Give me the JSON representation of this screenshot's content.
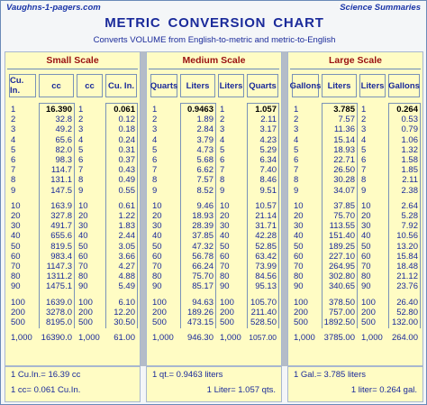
{
  "header": {
    "site": "Vaughns-1-pagers.com",
    "summaries": "Science Summaries",
    "title": "METRIC CONVERSION CHART",
    "subtitle": "Converts VOLUME from English-to-metric and metric-to-English"
  },
  "panels": [
    {
      "scale": "Small Scale",
      "headers": [
        "Cu. In.",
        "cc",
        "cc",
        "Cu. In."
      ],
      "left_rows": [
        [
          "1",
          "16.390"
        ],
        [
          "2",
          "32.8"
        ],
        [
          "3",
          "49.2"
        ],
        [
          "4",
          "65.6"
        ],
        [
          "5",
          "82.0"
        ],
        [
          "6",
          "98.3"
        ],
        [
          "7",
          "114.7"
        ],
        [
          "8",
          "131.1"
        ],
        [
          "9",
          "147.5"
        ],
        [
          "10",
          "163.9"
        ],
        [
          "20",
          "327.8"
        ],
        [
          "30",
          "491.7"
        ],
        [
          "40",
          "655.6"
        ],
        [
          "50",
          "819.5"
        ],
        [
          "60",
          "983.4"
        ],
        [
          "70",
          "1147.3"
        ],
        [
          "80",
          "1311.2"
        ],
        [
          "90",
          "1475.1"
        ],
        [
          "100",
          "1639.0"
        ],
        [
          "200",
          "3278.0"
        ],
        [
          "500",
          "8195.0"
        ],
        [
          "1,000",
          "16390.0"
        ]
      ],
      "right_rows": [
        [
          "1",
          "0.061"
        ],
        [
          "2",
          "0.12"
        ],
        [
          "3",
          "0.18"
        ],
        [
          "4",
          "0.24"
        ],
        [
          "5",
          "0.31"
        ],
        [
          "6",
          "0.37"
        ],
        [
          "7",
          "0.43"
        ],
        [
          "8",
          "0.49"
        ],
        [
          "9",
          "0.55"
        ],
        [
          "10",
          "0.61"
        ],
        [
          "20",
          "1.22"
        ],
        [
          "30",
          "1.83"
        ],
        [
          "40",
          "2.44"
        ],
        [
          "50",
          "3.05"
        ],
        [
          "60",
          "3.66"
        ],
        [
          "70",
          "4.27"
        ],
        [
          "80",
          "4.88"
        ],
        [
          "90",
          "5.49"
        ],
        [
          "100",
          "6.10"
        ],
        [
          "200",
          "12.20"
        ],
        [
          "500",
          "30.50"
        ],
        [
          "1,000",
          "61.00"
        ]
      ],
      "foot_a": "1 Cu.In.= 16.39 cc",
      "foot_b": "1 cc= 0.061 Cu.In."
    },
    {
      "scale": "Medium Scale",
      "headers": [
        "Quarts",
        "Liters",
        "Liters",
        "Quarts"
      ],
      "left_rows": [
        [
          "1",
          "0.9463"
        ],
        [
          "2",
          "1.89"
        ],
        [
          "3",
          "2.84"
        ],
        [
          "4",
          "3.79"
        ],
        [
          "5",
          "4.73"
        ],
        [
          "6",
          "5.68"
        ],
        [
          "7",
          "6.62"
        ],
        [
          "8",
          "7.57"
        ],
        [
          "9",
          "8.52"
        ],
        [
          "10",
          "9.46"
        ],
        [
          "20",
          "18.93"
        ],
        [
          "30",
          "28.39"
        ],
        [
          "40",
          "37.85"
        ],
        [
          "50",
          "47.32"
        ],
        [
          "60",
          "56.78"
        ],
        [
          "70",
          "66.24"
        ],
        [
          "80",
          "75.70"
        ],
        [
          "90",
          "85.17"
        ],
        [
          "100",
          "94.63"
        ],
        [
          "200",
          "189.26"
        ],
        [
          "500",
          "473.15"
        ],
        [
          "1,000",
          "946.30"
        ]
      ],
      "right_rows": [
        [
          "1",
          "1.057"
        ],
        [
          "2",
          "2.11"
        ],
        [
          "3",
          "3.17"
        ],
        [
          "4",
          "4.23"
        ],
        [
          "5",
          "5.29"
        ],
        [
          "6",
          "6.34"
        ],
        [
          "7",
          "7.40"
        ],
        [
          "8",
          "8.46"
        ],
        [
          "9",
          "9.51"
        ],
        [
          "10",
          "10.57"
        ],
        [
          "20",
          "21.14"
        ],
        [
          "30",
          "31.71"
        ],
        [
          "40",
          "42.28"
        ],
        [
          "50",
          "52.85"
        ],
        [
          "60",
          "63.42"
        ],
        [
          "70",
          "73.99"
        ],
        [
          "80",
          "84.56"
        ],
        [
          "90",
          "95.13"
        ],
        [
          "100",
          "105.70"
        ],
        [
          "200",
          "211.40"
        ],
        [
          "500",
          "528.50"
        ],
        [
          "1,000",
          "1057.00"
        ]
      ],
      "foot_a": "1 qt.= 0.9463 liters",
      "foot_b": "1 Liter= 1.057 qts."
    },
    {
      "scale": "Large Scale",
      "headers": [
        "Gallons",
        "Liters",
        "Liters",
        "Gallons"
      ],
      "left_rows": [
        [
          "1",
          "3.785"
        ],
        [
          "2",
          "7.57"
        ],
        [
          "3",
          "11.36"
        ],
        [
          "4",
          "15.14"
        ],
        [
          "5",
          "18.93"
        ],
        [
          "6",
          "22.71"
        ],
        [
          "7",
          "26.50"
        ],
        [
          "8",
          "30.28"
        ],
        [
          "9",
          "34.07"
        ],
        [
          "10",
          "37.85"
        ],
        [
          "20",
          "75.70"
        ],
        [
          "30",
          "113.55"
        ],
        [
          "40",
          "151.40"
        ],
        [
          "50",
          "189.25"
        ],
        [
          "60",
          "227.10"
        ],
        [
          "70",
          "264.95"
        ],
        [
          "80",
          "302.80"
        ],
        [
          "90",
          "340.65"
        ],
        [
          "100",
          "378.50"
        ],
        [
          "200",
          "757.00"
        ],
        [
          "500",
          "1892.50"
        ],
        [
          "1,000",
          "3785.00"
        ]
      ],
      "right_rows": [
        [
          "1",
          "0.264"
        ],
        [
          "2",
          "0.53"
        ],
        [
          "3",
          "0.79"
        ],
        [
          "4",
          "1.06"
        ],
        [
          "5",
          "1.32"
        ],
        [
          "6",
          "1.58"
        ],
        [
          "7",
          "1.85"
        ],
        [
          "8",
          "2.11"
        ],
        [
          "9",
          "2.38"
        ],
        [
          "10",
          "2.64"
        ],
        [
          "20",
          "5.28"
        ],
        [
          "30",
          "7.92"
        ],
        [
          "40",
          "10.56"
        ],
        [
          "50",
          "13.20"
        ],
        [
          "60",
          "15.84"
        ],
        [
          "70",
          "18.48"
        ],
        [
          "80",
          "21.12"
        ],
        [
          "90",
          "23.76"
        ],
        [
          "100",
          "26.40"
        ],
        [
          "200",
          "52.80"
        ],
        [
          "500",
          "132.00"
        ],
        [
          "1,000",
          "264.00"
        ]
      ],
      "foot_a": "1 Gal.= 3.785 liters",
      "foot_b": "1 liter= 0.264 gal."
    }
  ]
}
